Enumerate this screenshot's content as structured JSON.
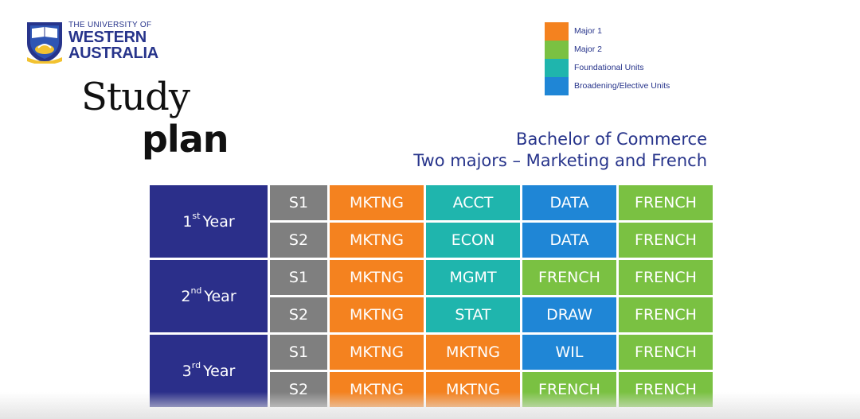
{
  "colors": {
    "year": "#2b2f8a",
    "semester": "#7f7f7f",
    "major1": "#f4821f",
    "major2": "#7ac142",
    "foundational": "#1fb5ad",
    "broadening": "#1f86d6",
    "brand": "#27348b"
  },
  "logo": {
    "line1": "THE UNIVERSITY OF",
    "line2": "WESTERN",
    "line3": "AUSTRALIA",
    "crest_icon": "university-crest-icon"
  },
  "title": {
    "line1": "Study",
    "line2": "plan"
  },
  "subtitle": {
    "line1": "Bachelor of Commerce",
    "line2": "Two majors – Marketing and French"
  },
  "legend": [
    {
      "label": "Major 1",
      "color": "#f4821f"
    },
    {
      "label": "Major 2",
      "color": "#7ac142"
    },
    {
      "label": "Foundational Units",
      "color": "#1fb5ad"
    },
    {
      "label": "Broadening/Elective Units",
      "color": "#1f86d6"
    }
  ],
  "plan": {
    "years": [
      {
        "num": "1",
        "sup": "st",
        "word": "Year"
      },
      {
        "num": "2",
        "sup": "nd",
        "word": "Year"
      },
      {
        "num": "3",
        "sup": "rd",
        "word": "Year"
      }
    ],
    "rows": [
      {
        "sem": "S1",
        "units": [
          "MKTNG",
          "ACCT",
          "DATA",
          "FRENCH"
        ]
      },
      {
        "sem": "S2",
        "units": [
          "MKTNG",
          "ECON",
          "DATA",
          "FRENCH"
        ]
      },
      {
        "sem": "S1",
        "units": [
          "MKTNG",
          "MGMT",
          "FRENCH",
          "FRENCH"
        ]
      },
      {
        "sem": "S2",
        "units": [
          "MKTNG",
          "STAT",
          "DRAW",
          "FRENCH"
        ]
      },
      {
        "sem": "S1",
        "units": [
          "MKTNG",
          "MKTNG",
          "WIL",
          "FRENCH"
        ]
      },
      {
        "sem": "S2",
        "units": [
          "MKTNG",
          "MKTNG",
          "FRENCH",
          "FRENCH"
        ]
      }
    ]
  }
}
